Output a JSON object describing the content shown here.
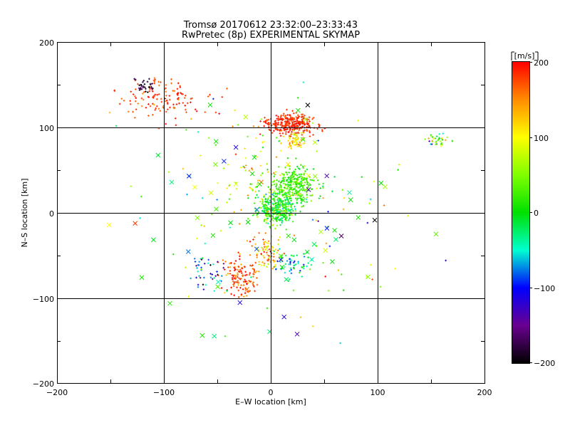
{
  "chart_data": {
    "type": "scatter",
    "title": "Tromsø 20170612 23:32:00–23:33:43",
    "subtitle": "RwPretec (8p) EXPERIMENTAL SKYMAP",
    "xlabel": "E–W location [km]",
    "ylabel": "N–S location [km]",
    "xlim": [
      -200,
      200
    ],
    "ylim": [
      -200,
      200
    ],
    "xticks": [
      "−200",
      "−100",
      "0",
      "100",
      "200"
    ],
    "yticks": [
      "−200",
      "−100",
      "0",
      "100",
      "200"
    ],
    "grid": true,
    "colorbar": {
      "unit": "[m/s]",
      "range": [
        -200,
        200
      ],
      "ticks": [
        "200",
        "100",
        "0",
        "−100",
        "−200"
      ],
      "colormap": "rainbow (black → purple → blue → cyan → green → yellow → orange → red)"
    },
    "clusters": [
      {
        "center": [
          18,
          105
        ],
        "spread": [
          20,
          10
        ],
        "velocity": 185,
        "vspread": 20,
        "points": 300,
        "marker": "plus"
      },
      {
        "center": [
          22,
          83
        ],
        "spread": [
          10,
          10
        ],
        "velocity": 125,
        "vspread": 40,
        "points": 60,
        "marker": "plus"
      },
      {
        "center": [
          -100,
          135
        ],
        "spread": [
          35,
          20
        ],
        "velocity": 180,
        "vspread": 30,
        "points": 130,
        "marker": "plus"
      },
      {
        "center": [
          -118,
          150
        ],
        "spread": [
          8,
          10
        ],
        "velocity": -190,
        "vspread": 30,
        "points": 30,
        "marker": "plus"
      },
      {
        "center": [
          22,
          32
        ],
        "spread": [
          18,
          18
        ],
        "velocity": 25,
        "vspread": 35,
        "points": 320,
        "marker": "plus"
      },
      {
        "center": [
          5,
          5
        ],
        "spread": [
          14,
          14
        ],
        "velocity": 10,
        "vspread": 60,
        "points": 340,
        "marker": "plus"
      },
      {
        "center": [
          -28,
          -75
        ],
        "spread": [
          14,
          18
        ],
        "velocity": 175,
        "vspread": 40,
        "points": 130,
        "marker": "plus"
      },
      {
        "center": [
          -5,
          -45
        ],
        "spread": [
          12,
          15
        ],
        "velocity": 140,
        "vspread": 70,
        "points": 80,
        "marker": "plus"
      },
      {
        "center": [
          20,
          -60
        ],
        "spread": [
          15,
          15
        ],
        "velocity": -40,
        "vspread": 60,
        "points": 60,
        "marker": "plus"
      },
      {
        "center": [
          -60,
          -65
        ],
        "spread": [
          15,
          25
        ],
        "velocity": -80,
        "vspread": 100,
        "points": 40,
        "marker": "plus"
      },
      {
        "center": [
          -15,
          45
        ],
        "spread": [
          25,
          50
        ],
        "velocity": 100,
        "vspread": 80,
        "points": 60,
        "marker": "plus"
      },
      {
        "center": [
          155,
          85
        ],
        "spread": [
          10,
          8
        ],
        "velocity": 30,
        "vspread": 120,
        "points": 35,
        "marker": "plus"
      },
      {
        "center": [
          0,
          0
        ],
        "spread": [
          110,
          110
        ],
        "velocity": 50,
        "vspread": 130,
        "points": 120,
        "marker": "plus"
      },
      {
        "center": [
          0,
          0
        ],
        "spread": [
          110,
          110
        ],
        "velocity": 0,
        "vspread": 140,
        "points": 75,
        "marker": "x"
      }
    ]
  }
}
